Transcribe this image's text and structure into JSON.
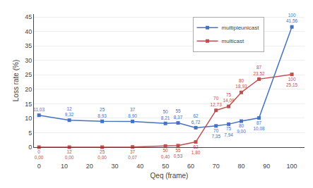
{
  "chart_data": {
    "type": "line",
    "x": [
      0,
      12,
      25,
      37,
      50,
      55,
      62,
      70,
      75,
      80,
      87,
      100
    ],
    "series": [
      {
        "name": "multipleunicast",
        "color": "#4472c4",
        "values": [
          11.03,
          9.32,
          8.93,
          8.9,
          8.21,
          8.37,
          6.72,
          7.35,
          7.94,
          9.0,
          10.08,
          41.56
        ],
        "value_labels": [
          "11,03",
          "12\n9,32",
          "25\n8,93",
          "37\n8,90",
          "50\n8,21",
          "55\n8,37",
          "62\n6,72",
          "70\n7,35",
          "75\n7,94",
          "80\n9,00",
          "87\n10,08",
          "100\n41,56"
        ]
      },
      {
        "name": "multicast",
        "color": "#c0504d",
        "values": [
          0.0,
          0.0,
          0.0,
          0.07,
          0.4,
          0.53,
          1.8,
          12.73,
          14.09,
          18.93,
          23.52,
          25.15
        ],
        "value_labels": [
          "0\n0,00",
          "12\n0,00",
          "25\n0,00",
          "37\n0,07",
          "50\n0,40",
          "55\n0,53",
          "62\n1,80",
          "70\n12,73",
          "75\n14,09",
          "80\n18,93",
          "87\n23,52",
          "100\n25,15"
        ]
      }
    ],
    "xlabel": "Qeq (frame)",
    "ylabel": "Loss rate (%)",
    "xlim": [
      -2,
      105
    ],
    "ylim": [
      0,
      46
    ],
    "xticks": [
      0,
      10,
      20,
      30,
      40,
      50,
      60,
      70,
      80,
      90,
      100
    ],
    "yticks": [
      0,
      5,
      10,
      15,
      20,
      25,
      30,
      35,
      40,
      45
    ],
    "grid": "y",
    "legend": "upper right",
    "marker": "square",
    "line_style": "solid",
    "data_labels": true
  }
}
